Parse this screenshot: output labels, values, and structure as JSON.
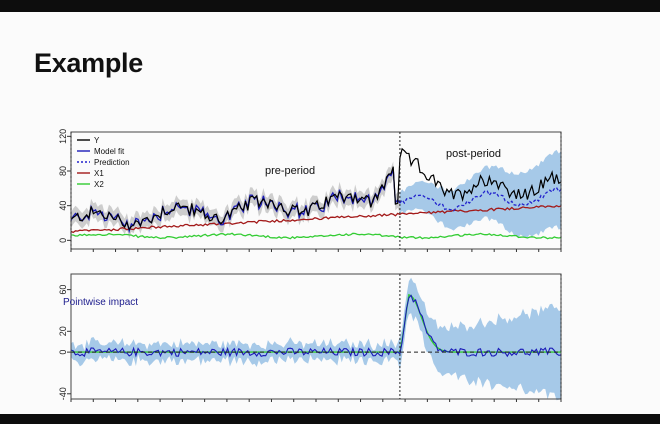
{
  "slide": {
    "title": "Example"
  },
  "colors": {
    "observed": "#000000",
    "model_fit": "#1b1bb8",
    "prediction": "#2222cc",
    "x1": "#a31a1a",
    "x2": "#33cc33",
    "interval": "#9cc3e6",
    "pre_band": "#c8c8c8"
  },
  "chart_data": [
    {
      "type": "line",
      "annotations": [
        "pre-period",
        "post-period"
      ],
      "legend_position": "top-left",
      "ylim": [
        -10,
        125
      ],
      "yticks": [
        0,
        40,
        80,
        120
      ],
      "series": [
        {
          "name": "Y",
          "color": "#000000",
          "style": "solid"
        },
        {
          "name": "Model fit",
          "color": "#1b1bb8",
          "style": "solid"
        },
        {
          "name": "Prediction",
          "color": "#2222cc",
          "style": "dashed"
        },
        {
          "name": "X1",
          "color": "#a31a1a",
          "style": "solid"
        },
        {
          "name": "X2",
          "color": "#33cc33",
          "style": "solid"
        }
      ],
      "intervention_at_fraction": 0.67,
      "x1_range": [
        10,
        40
      ],
      "x2_level": 5
    },
    {
      "type": "line",
      "title": "Pointwise impact",
      "ylim": [
        -45,
        75
      ],
      "yticks": [
        -40,
        0,
        20,
        60
      ],
      "intervention_at_fraction": 0.67,
      "peak_impact": 55,
      "post_period_final_interval": [
        -40,
        40
      ]
    }
  ]
}
